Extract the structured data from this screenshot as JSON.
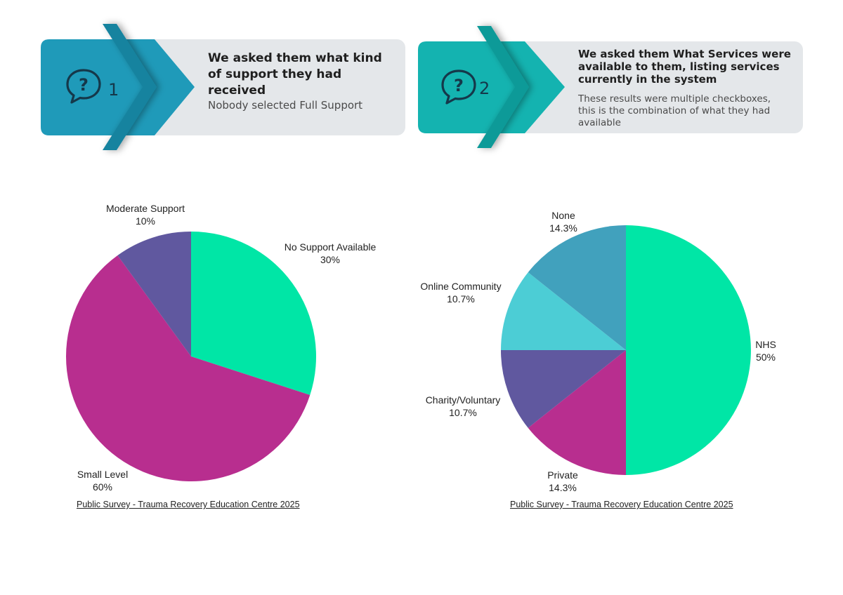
{
  "colors": {
    "card_bg": "#e4e7ea",
    "badge1": "#1f9ab9",
    "badge2": "#14b3b0",
    "icon": "#15384a"
  },
  "cards": [
    {
      "number": "1",
      "icon": "question-bubble-icon",
      "title": "We asked them what kind of support they had received",
      "subtitle": "Nobody selected Full Support"
    },
    {
      "number": "2",
      "icon": "question-bubble-icon",
      "title": "We asked them What Services were available to them, listing services currently in the system",
      "subtitle": "These results were multiple checkboxes, this is the combination of what they had available"
    }
  ],
  "chart_data": [
    {
      "type": "pie",
      "slices": [
        {
          "label": "No Support Available",
          "value": 30,
          "display": "30%",
          "color": "#00e6a6"
        },
        {
          "label": "Small Level",
          "value": 60,
          "display": "60%",
          "color": "#b82e8f"
        },
        {
          "label": "Moderate Support",
          "value": 10,
          "display": "10%",
          "color": "#60589f"
        }
      ],
      "source": "Public Survey - Trauma Recovery Education Centre 2025"
    },
    {
      "type": "pie",
      "slices": [
        {
          "label": "NHS",
          "value": 50,
          "display": "50%",
          "color": "#00e6a6"
        },
        {
          "label": "Private",
          "value": 14.3,
          "display": "14.3%",
          "color": "#b82e8f"
        },
        {
          "label": "Charity/Voluntary",
          "value": 10.7,
          "display": "10.7%",
          "color": "#60589f"
        },
        {
          "label": "Online Community",
          "value": 10.7,
          "display": "10.7%",
          "color": "#4ccdd5"
        },
        {
          "label": "None",
          "value": 14.3,
          "display": "14.3%",
          "color": "#41a1bd"
        }
      ],
      "source": "Public Survey - Trauma Recovery Education Centre 2025"
    }
  ]
}
